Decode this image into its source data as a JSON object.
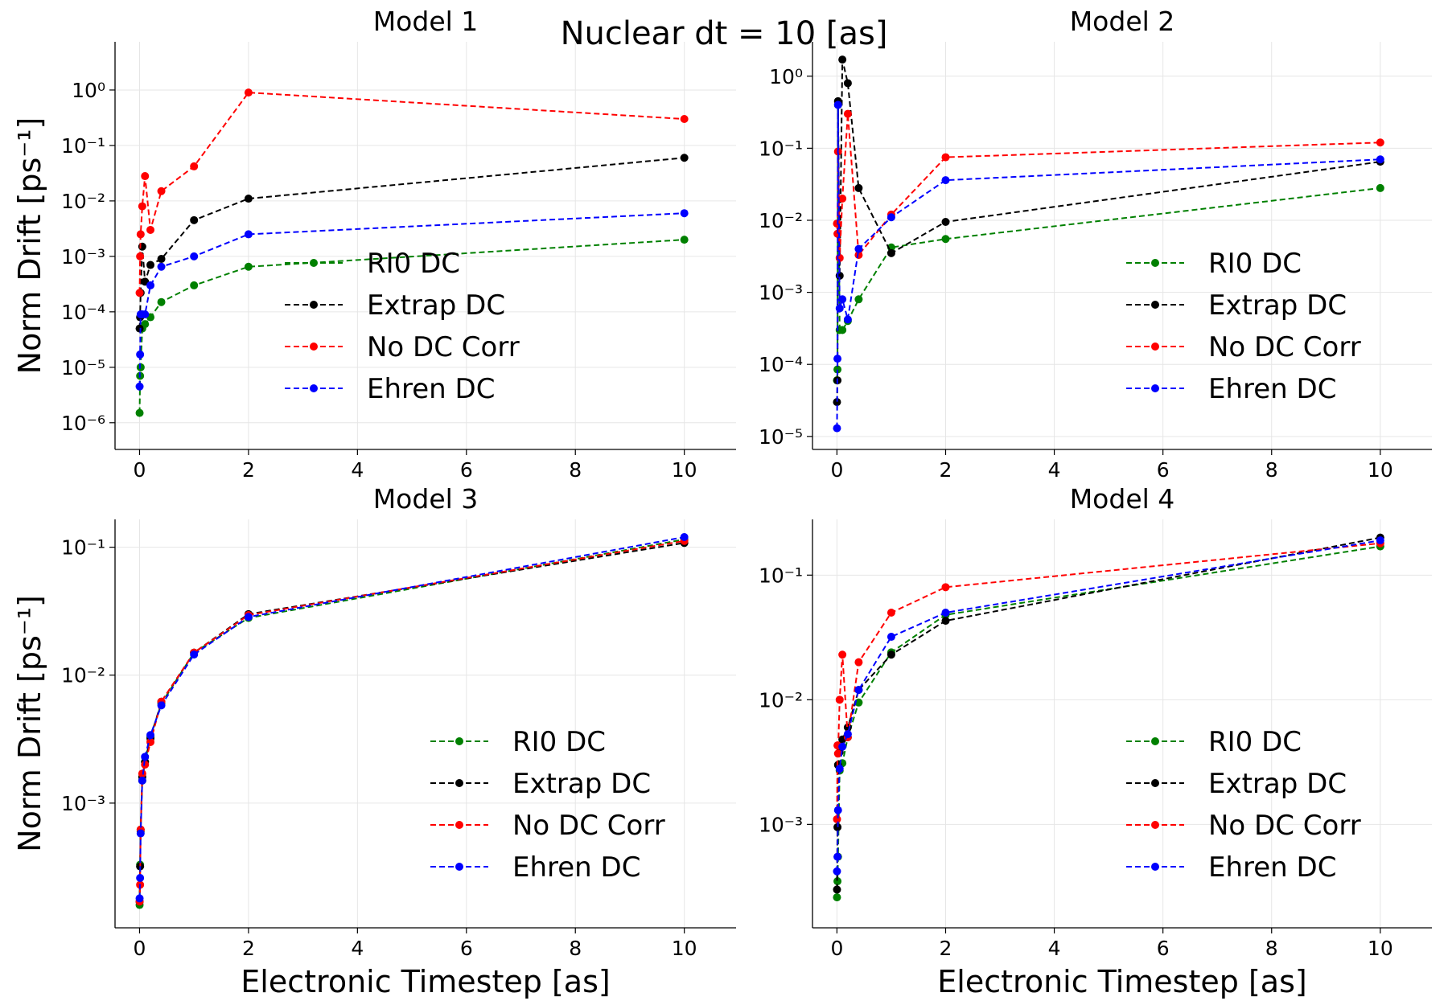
{
  "title": "Nuclear dt = 10 [as]",
  "chart_data": [
    {
      "type": "line",
      "title": "Model 1",
      "ylabel": "Norm Drift [ps⁻¹]",
      "log_y": true,
      "grid": true,
      "legend": "lower center",
      "x": [
        0.001,
        0.01,
        0.02,
        0.05,
        0.1,
        0.2,
        0.4,
        1,
        2,
        10
      ],
      "xlim": [
        -0.45,
        10.95
      ],
      "xticks": [
        0,
        2,
        4,
        6,
        8,
        10
      ],
      "ylim": [
        3.3e-07,
        7.4
      ],
      "yticks": [
        {
          "value": 1e-06,
          "label": "10⁻⁶"
        },
        {
          "value": 1e-05,
          "label": "10⁻⁵"
        },
        {
          "value": 0.0001,
          "label": "10⁻⁴"
        },
        {
          "value": 0.001,
          "label": "10⁻³"
        },
        {
          "value": 0.01,
          "label": "10⁻²"
        },
        {
          "value": 0.1,
          "label": "10⁻¹"
        },
        {
          "value": 1,
          "label": "10⁰"
        }
      ],
      "series": [
        {
          "name": "RI0 DC",
          "color": "#008000",
          "values": [
            1.5e-06,
            7e-06,
            1e-05,
            5e-05,
            6e-05,
            8e-05,
            0.00015,
            0.0003,
            0.00065,
            0.002
          ]
        },
        {
          "name": "Extrap DC",
          "color": "#000000",
          "values": [
            5e-05,
            8e-05,
            0.00022,
            0.0015,
            0.00035,
            0.0007,
            0.0009,
            0.0045,
            0.011,
            0.06
          ]
        },
        {
          "name": "No DC Corr",
          "color": "#ff0000",
          "values": [
            0.00022,
            0.001,
            0.0025,
            0.008,
            0.028,
            0.003,
            0.015,
            0.042,
            0.9,
            0.3
          ]
        },
        {
          "name": "Ehren DC",
          "color": "#0000ff",
          "values": [
            4.5e-06,
            1.7e-05,
            9e-05,
            9e-05,
            9e-05,
            0.0003,
            0.00065,
            0.001,
            0.0025,
            0.006
          ]
        }
      ]
    },
    {
      "type": "line",
      "title": "Model 2",
      "log_y": true,
      "grid": true,
      "legend": "lower right",
      "x": [
        0.001,
        0.01,
        0.02,
        0.05,
        0.1,
        0.2,
        0.4,
        1,
        2,
        10
      ],
      "xlim": [
        -0.45,
        10.95
      ],
      "xticks": [
        0,
        2,
        4,
        6,
        8,
        10
      ],
      "ylim": [
        6.6e-06,
        3
      ],
      "yticks": [
        {
          "value": 1e-05,
          "label": "10⁻⁵"
        },
        {
          "value": 0.0001,
          "label": "10⁻⁴"
        },
        {
          "value": 0.001,
          "label": "10⁻³"
        },
        {
          "value": 0.01,
          "label": "10⁻²"
        },
        {
          "value": 0.1,
          "label": "10⁻¹"
        },
        {
          "value": 1,
          "label": "10⁰"
        }
      ],
      "series": [
        {
          "name": "RI0 DC",
          "color": "#008000",
          "values": [
            6e-05,
            8.5e-05,
            0.4,
            0.0003,
            0.0003,
            0.0004,
            0.0008,
            0.0042,
            0.0055,
            0.028
          ]
        },
        {
          "name": "Extrap DC",
          "color": "#000000",
          "values": [
            3e-05,
            6e-05,
            0.45,
            0.0017,
            1.7,
            0.8,
            0.028,
            0.0035,
            0.0095,
            0.065
          ]
        },
        {
          "name": "No DC Corr",
          "color": "#ff0000",
          "values": [
            0.009,
            0.0065,
            0.09,
            0.003,
            0.02,
            0.3,
            0.0033,
            0.012,
            0.075,
            0.12
          ]
        },
        {
          "name": "Ehren DC",
          "color": "#0000ff",
          "values": [
            1.3e-05,
            0.00012,
            0.4,
            0.0006,
            0.0008,
            0.00042,
            0.004,
            0.011,
            0.036,
            0.07
          ]
        }
      ]
    },
    {
      "type": "line",
      "title": "Model 3",
      "ylabel": "Norm Drift [ps⁻¹]",
      "xlabel": "Electronic Timestep [as]",
      "log_y": true,
      "grid": true,
      "legend": "lower right",
      "x": [
        0.001,
        0.01,
        0.02,
        0.05,
        0.1,
        0.2,
        0.4,
        1,
        2,
        10
      ],
      "xlim": [
        -0.45,
        10.95
      ],
      "xticks": [
        0,
        2,
        4,
        6,
        8,
        10
      ],
      "ylim": [
        0.000106,
        0.165
      ],
      "yticks": [
        {
          "value": 0.001,
          "label": "10⁻³"
        },
        {
          "value": 0.01,
          "label": "10⁻²"
        },
        {
          "value": 0.1,
          "label": "10⁻¹"
        }
      ],
      "series": [
        {
          "name": "RI0 DC",
          "color": "#008000",
          "values": [
            0.00016,
            0.00033,
            0.0006,
            0.0015,
            0.0021,
            0.0033,
            0.006,
            0.015,
            0.028,
            0.115
          ]
        },
        {
          "name": "Extrap DC",
          "color": "#000000",
          "values": [
            0.00017,
            0.00032,
            0.00062,
            0.0016,
            0.0021,
            0.0032,
            0.0062,
            0.015,
            0.03,
            0.108
          ]
        },
        {
          "name": "No DC Corr",
          "color": "#ff0000",
          "values": [
            0.00017,
            0.00023,
            0.00062,
            0.0017,
            0.002,
            0.003,
            0.0062,
            0.015,
            0.0295,
            0.112
          ]
        },
        {
          "name": "Ehren DC",
          "color": "#0000ff",
          "values": [
            0.00018,
            0.00026,
            0.00058,
            0.0015,
            0.0023,
            0.0034,
            0.0058,
            0.0145,
            0.0285,
            0.12
          ]
        }
      ]
    },
    {
      "type": "line",
      "title": "Model 4",
      "xlabel": "Electronic Timestep [as]",
      "log_y": true,
      "grid": true,
      "legend": "lower right",
      "x": [
        0.001,
        0.01,
        0.02,
        0.05,
        0.1,
        0.2,
        0.4,
        1,
        2,
        10
      ],
      "xlim": [
        -0.45,
        10.95
      ],
      "xticks": [
        0,
        2,
        4,
        6,
        8,
        10
      ],
      "ylim": [
        0.000148,
        0.28
      ],
      "yticks": [
        {
          "value": 0.001,
          "label": "10⁻³"
        },
        {
          "value": 0.01,
          "label": "10⁻²"
        },
        {
          "value": 0.1,
          "label": "10⁻¹"
        }
      ],
      "series": [
        {
          "name": "RI0 DC",
          "color": "#008000",
          "values": [
            0.00026,
            0.00035,
            0.00055,
            0.0027,
            0.0031,
            0.005,
            0.0095,
            0.024,
            0.048,
            0.17
          ]
        },
        {
          "name": "Extrap DC",
          "color": "#000000",
          "values": [
            0.0003,
            0.00095,
            0.003,
            0.0038,
            0.0048,
            0.006,
            0.012,
            0.023,
            0.043,
            0.2
          ]
        },
        {
          "name": "No DC Corr",
          "color": "#ff0000",
          "values": [
            0.0011,
            0.0043,
            0.0037,
            0.01,
            0.023,
            0.005,
            0.02,
            0.05,
            0.08,
            0.18
          ]
        },
        {
          "name": "Ehren DC",
          "color": "#0000ff",
          "values": [
            0.00042,
            0.00055,
            0.0013,
            0.0028,
            0.0042,
            0.0053,
            0.012,
            0.032,
            0.05,
            0.19
          ]
        }
      ]
    }
  ]
}
